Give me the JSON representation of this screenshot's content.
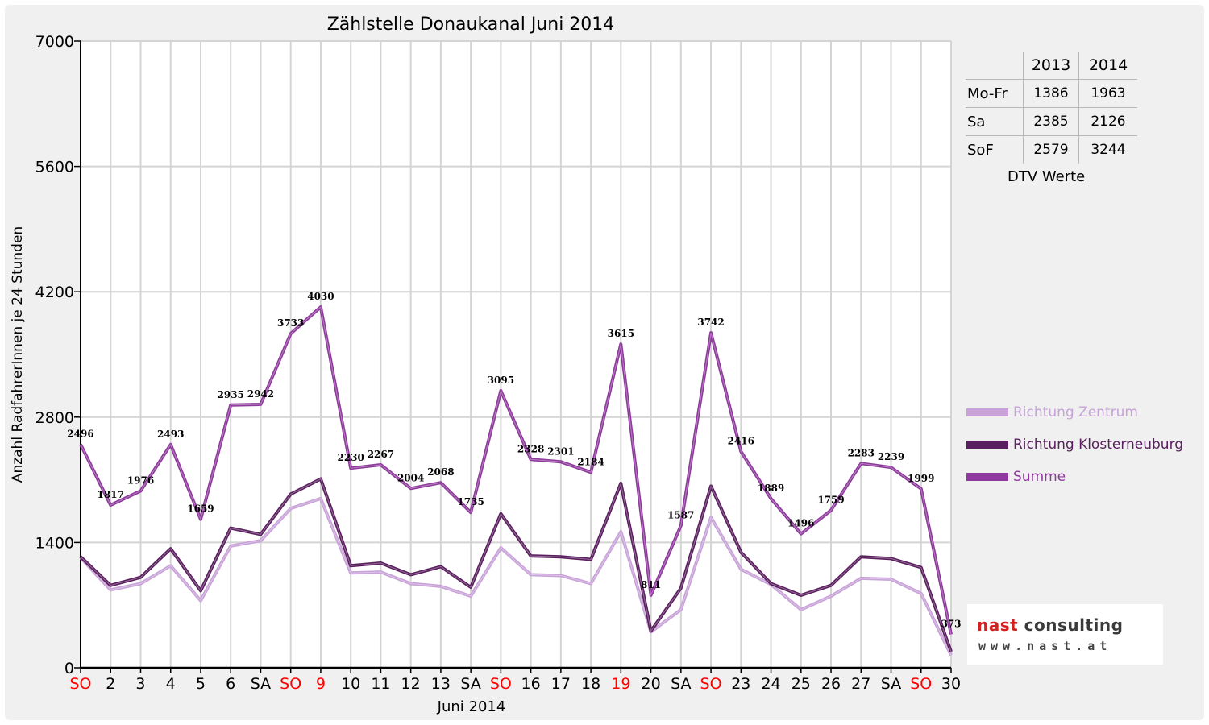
{
  "chart_data": {
    "type": "line",
    "title": "Zählstelle Donaukanal Juni 2014",
    "xlabel": "Juni 2014",
    "ylabel": "Anzahl RadfahrerInnen je 24 Stunden",
    "ylim": [
      0,
      7000
    ],
    "yticks": [
      0,
      1400,
      2800,
      4200,
      5600,
      7000
    ],
    "grid": true,
    "legend_position": "right",
    "categories": [
      "SO",
      "2",
      "3",
      "4",
      "5",
      "6",
      "SA",
      "SO",
      "9",
      "10",
      "11",
      "12",
      "13",
      "SA",
      "SO",
      "16",
      "17",
      "18",
      "19",
      "20",
      "SA",
      "SO",
      "23",
      "24",
      "25",
      "26",
      "27",
      "SA",
      "SO",
      "30"
    ],
    "category_colors": [
      "#ff0000",
      "#000000",
      "#000000",
      "#000000",
      "#000000",
      "#000000",
      "#000000",
      "#ff0000",
      "#ff0000",
      "#000000",
      "#000000",
      "#000000",
      "#000000",
      "#000000",
      "#ff0000",
      "#000000",
      "#000000",
      "#000000",
      "#ff0000",
      "#000000",
      "#000000",
      "#ff0000",
      "#000000",
      "#000000",
      "#000000",
      "#000000",
      "#000000",
      "#000000",
      "#ff0000",
      "#000000"
    ],
    "series": [
      {
        "name": "Richtung Zentrum",
        "color": "#c8a2d8",
        "values": [
          1230,
          870,
          940,
          1140,
          750,
          1360,
          1420,
          1780,
          1890,
          1060,
          1070,
          940,
          910,
          800,
          1340,
          1040,
          1030,
          940,
          1520,
          400,
          650,
          1680,
          1100,
          930,
          650,
          800,
          1000,
          990,
          830,
          140
        ]
      },
      {
        "name": "Richtung Klosterneuburg",
        "color": "#5a1f5e",
        "values": [
          1240,
          920,
          1010,
          1330,
          860,
          1560,
          1490,
          1940,
          2110,
          1140,
          1170,
          1040,
          1130,
          900,
          1720,
          1250,
          1240,
          1210,
          2060,
          410,
          890,
          2030,
          1290,
          940,
          810,
          920,
          1240,
          1220,
          1120,
          180
        ]
      },
      {
        "name": "Summe",
        "color": "#8e3a9c",
        "values": [
          2496,
          1817,
          1976,
          2493,
          1659,
          2935,
          2942,
          3733,
          4030,
          2230,
          2267,
          2004,
          2068,
          1735,
          3095,
          2328,
          2301,
          2184,
          3615,
          811,
          1587,
          3742,
          2416,
          1889,
          1496,
          1759,
          2283,
          2239,
          1999,
          373
        ]
      }
    ],
    "data_labels": [
      "2496",
      "1817",
      "1976",
      "2493",
      "1659",
      "2935",
      "2942",
      "3733",
      "4030",
      "2230",
      "2267",
      "2004",
      "2068",
      "1735",
      "3095",
      "2328",
      "2301",
      "2184",
      "3615",
      "811",
      "1587",
      "3742",
      "2416",
      "1889",
      "1496",
      "1759",
      "2283",
      "2239",
      "1999",
      "373"
    ]
  },
  "dtv_table": {
    "years": [
      "2013",
      "2014"
    ],
    "rows": [
      {
        "label": "Mo-Fr",
        "v2013": "1386",
        "v2014": "1963"
      },
      {
        "label": "Sa",
        "v2013": "2385",
        "v2014": "2126"
      },
      {
        "label": "SoF",
        "v2013": "2579",
        "v2014": "3244"
      }
    ],
    "caption": "DTV Werte"
  },
  "logo": {
    "name_part1": "nast",
    "name_part2": " consulting",
    "url": "www.nast.at"
  }
}
